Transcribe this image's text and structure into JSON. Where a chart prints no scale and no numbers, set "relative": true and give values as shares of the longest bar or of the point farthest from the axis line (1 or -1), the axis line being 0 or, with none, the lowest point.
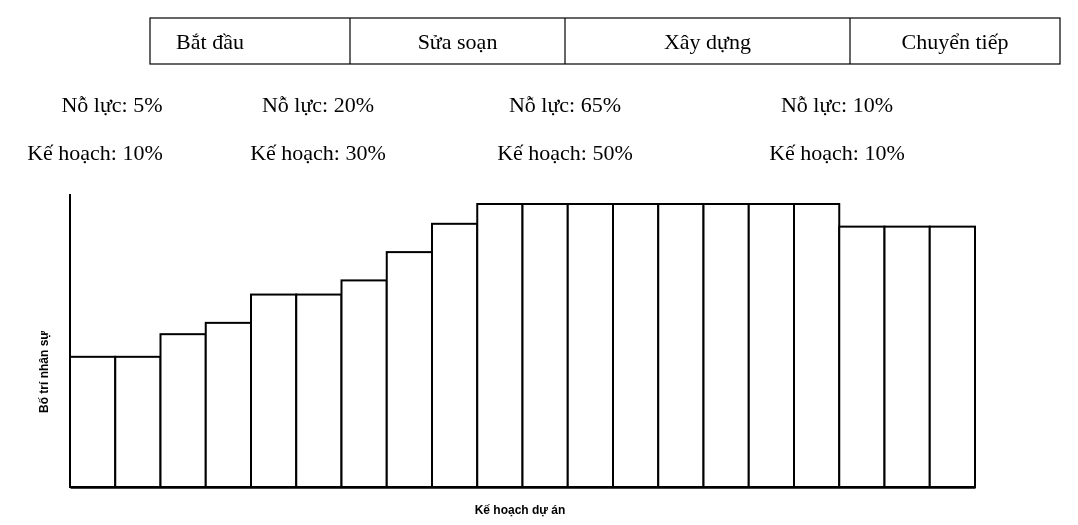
{
  "chart_data": {
    "type": "bar",
    "relative": true,
    "xlabel": "Kế hoạch dự án",
    "ylabel": "Bố trí nhân sự",
    "color": "#ffffff",
    "categories": [
      null,
      null,
      null,
      null,
      null,
      null,
      null,
      null,
      null,
      null,
      null,
      null,
      null,
      null,
      null,
      null,
      null,
      null,
      null,
      null
    ],
    "values": [
      0.46,
      0.46,
      0.54,
      0.58,
      0.68,
      0.68,
      0.73,
      0.83,
      0.93,
      1,
      1,
      1,
      1,
      1,
      1,
      1,
      1,
      0.92,
      0.92,
      0.92
    ],
    "annotations": [
      "Bắt đầu",
      "Sửa soạn",
      "Xây dựng",
      "Chuyển tiếp",
      "Nỗ lực: 5%",
      "Nỗ lực: 20%",
      "Nỗ lực: 65%",
      "Nỗ lực: 10%",
      "Kế hoạch: 10%",
      "Kế hoạch: 30%",
      "Kế hoạch: 50%",
      "Kế hoạch: 10%"
    ]
  }
}
